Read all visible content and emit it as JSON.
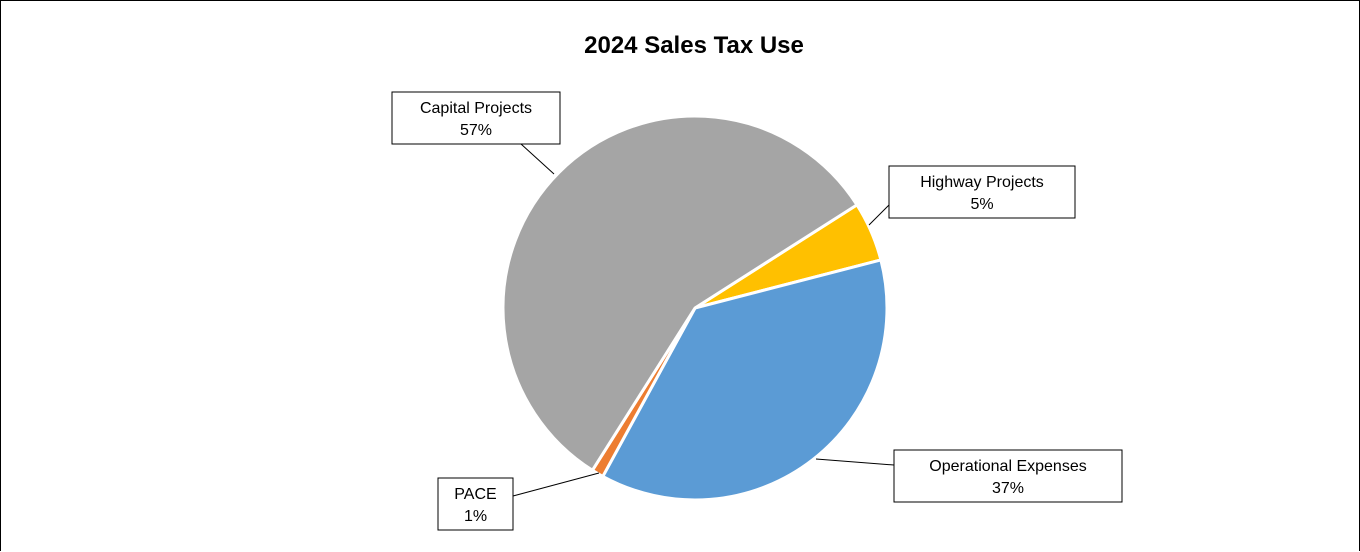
{
  "chart_data": {
    "type": "pie",
    "title": "2024 Sales Tax Use",
    "slices": [
      {
        "label": "Highway Projects",
        "value": 5,
        "display": "5%",
        "color": "#FFC000"
      },
      {
        "label": "Operational Expenses",
        "value": 37,
        "display": "37%",
        "color": "#5B9BD5"
      },
      {
        "label": "PACE",
        "value": 1,
        "display": "1%",
        "color": "#ED7D31"
      },
      {
        "label": "Capital Projects",
        "value": 57,
        "display": "57%",
        "color": "#A5A5A5"
      }
    ],
    "legend": "none",
    "data_labels": "callouts with category name and percentage"
  }
}
